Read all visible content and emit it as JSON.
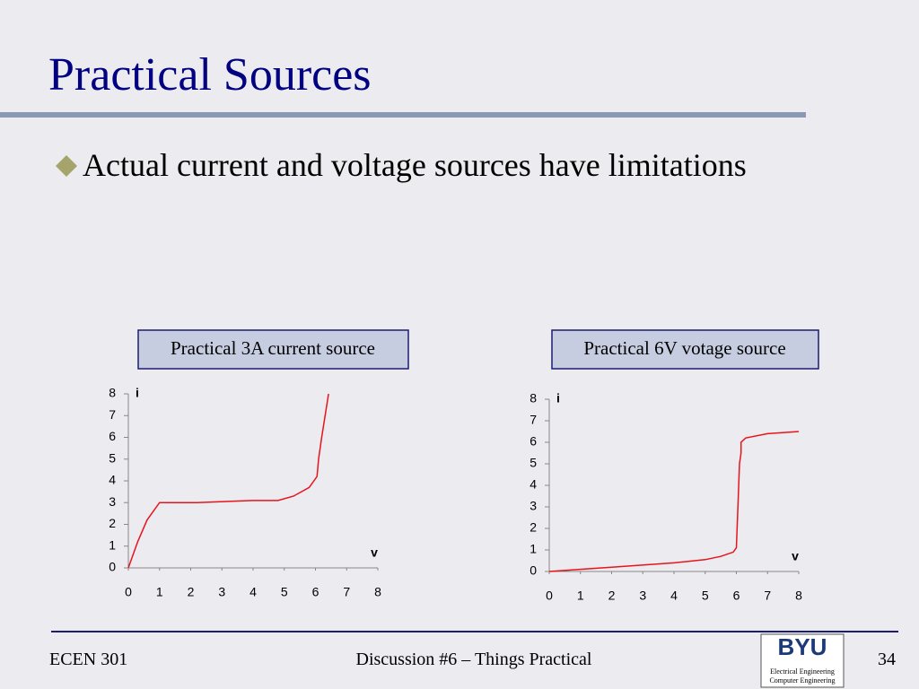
{
  "title": "Practical Sources",
  "bullets": [
    "Actual current and voltage sources have limitations"
  ],
  "footer": {
    "left": "ECEN 301",
    "center": "Discussion #6 – Things Practical",
    "page": "34",
    "logo": {
      "name": "BYU",
      "line1": "Electrical Engineering",
      "line2": "Computer Engineering"
    }
  },
  "chart_data": [
    {
      "type": "line",
      "title": "Practical 3A current source",
      "xlabel": "v",
      "ylabel": "i",
      "x": [
        0,
        0.3,
        0.6,
        1,
        2.2,
        4,
        4.8,
        5.3,
        5.8,
        6.05,
        6.1,
        6.2,
        6.42
      ],
      "series": [
        {
          "color": "#e8141c",
          "values": [
            0,
            1.2,
            2.2,
            3,
            3,
            3.1,
            3.1,
            3.3,
            3.7,
            4.2,
            5,
            6,
            8
          ]
        }
      ],
      "xlim": [
        0,
        8
      ],
      "ylim": [
        0,
        8
      ],
      "xticks": [
        0,
        1,
        2,
        3,
        4,
        5,
        6,
        7,
        8
      ],
      "yticks": [
        0,
        1,
        2,
        3,
        4,
        5,
        6,
        7,
        8
      ]
    },
    {
      "type": "line",
      "title": "Practical 6V votage source",
      "xlabel": "v",
      "ylabel": "i",
      "x": [
        0,
        2,
        4,
        5,
        5.5,
        5.9,
        6,
        6.05,
        6.1,
        6.15,
        6.15,
        6.3,
        7,
        8
      ],
      "series": [
        {
          "color": "#e8141c",
          "values": [
            0,
            0.2,
            0.4,
            0.55,
            0.7,
            0.9,
            1.1,
            3,
            5,
            5.5,
            6,
            6.2,
            6.4,
            6.5
          ]
        }
      ],
      "xlim": [
        0,
        8
      ],
      "ylim": [
        0,
        8
      ],
      "xticks": [
        0,
        1,
        2,
        3,
        4,
        5,
        6,
        7,
        8
      ],
      "yticks": [
        0,
        1,
        2,
        3,
        4,
        5,
        6,
        7,
        8
      ]
    }
  ]
}
